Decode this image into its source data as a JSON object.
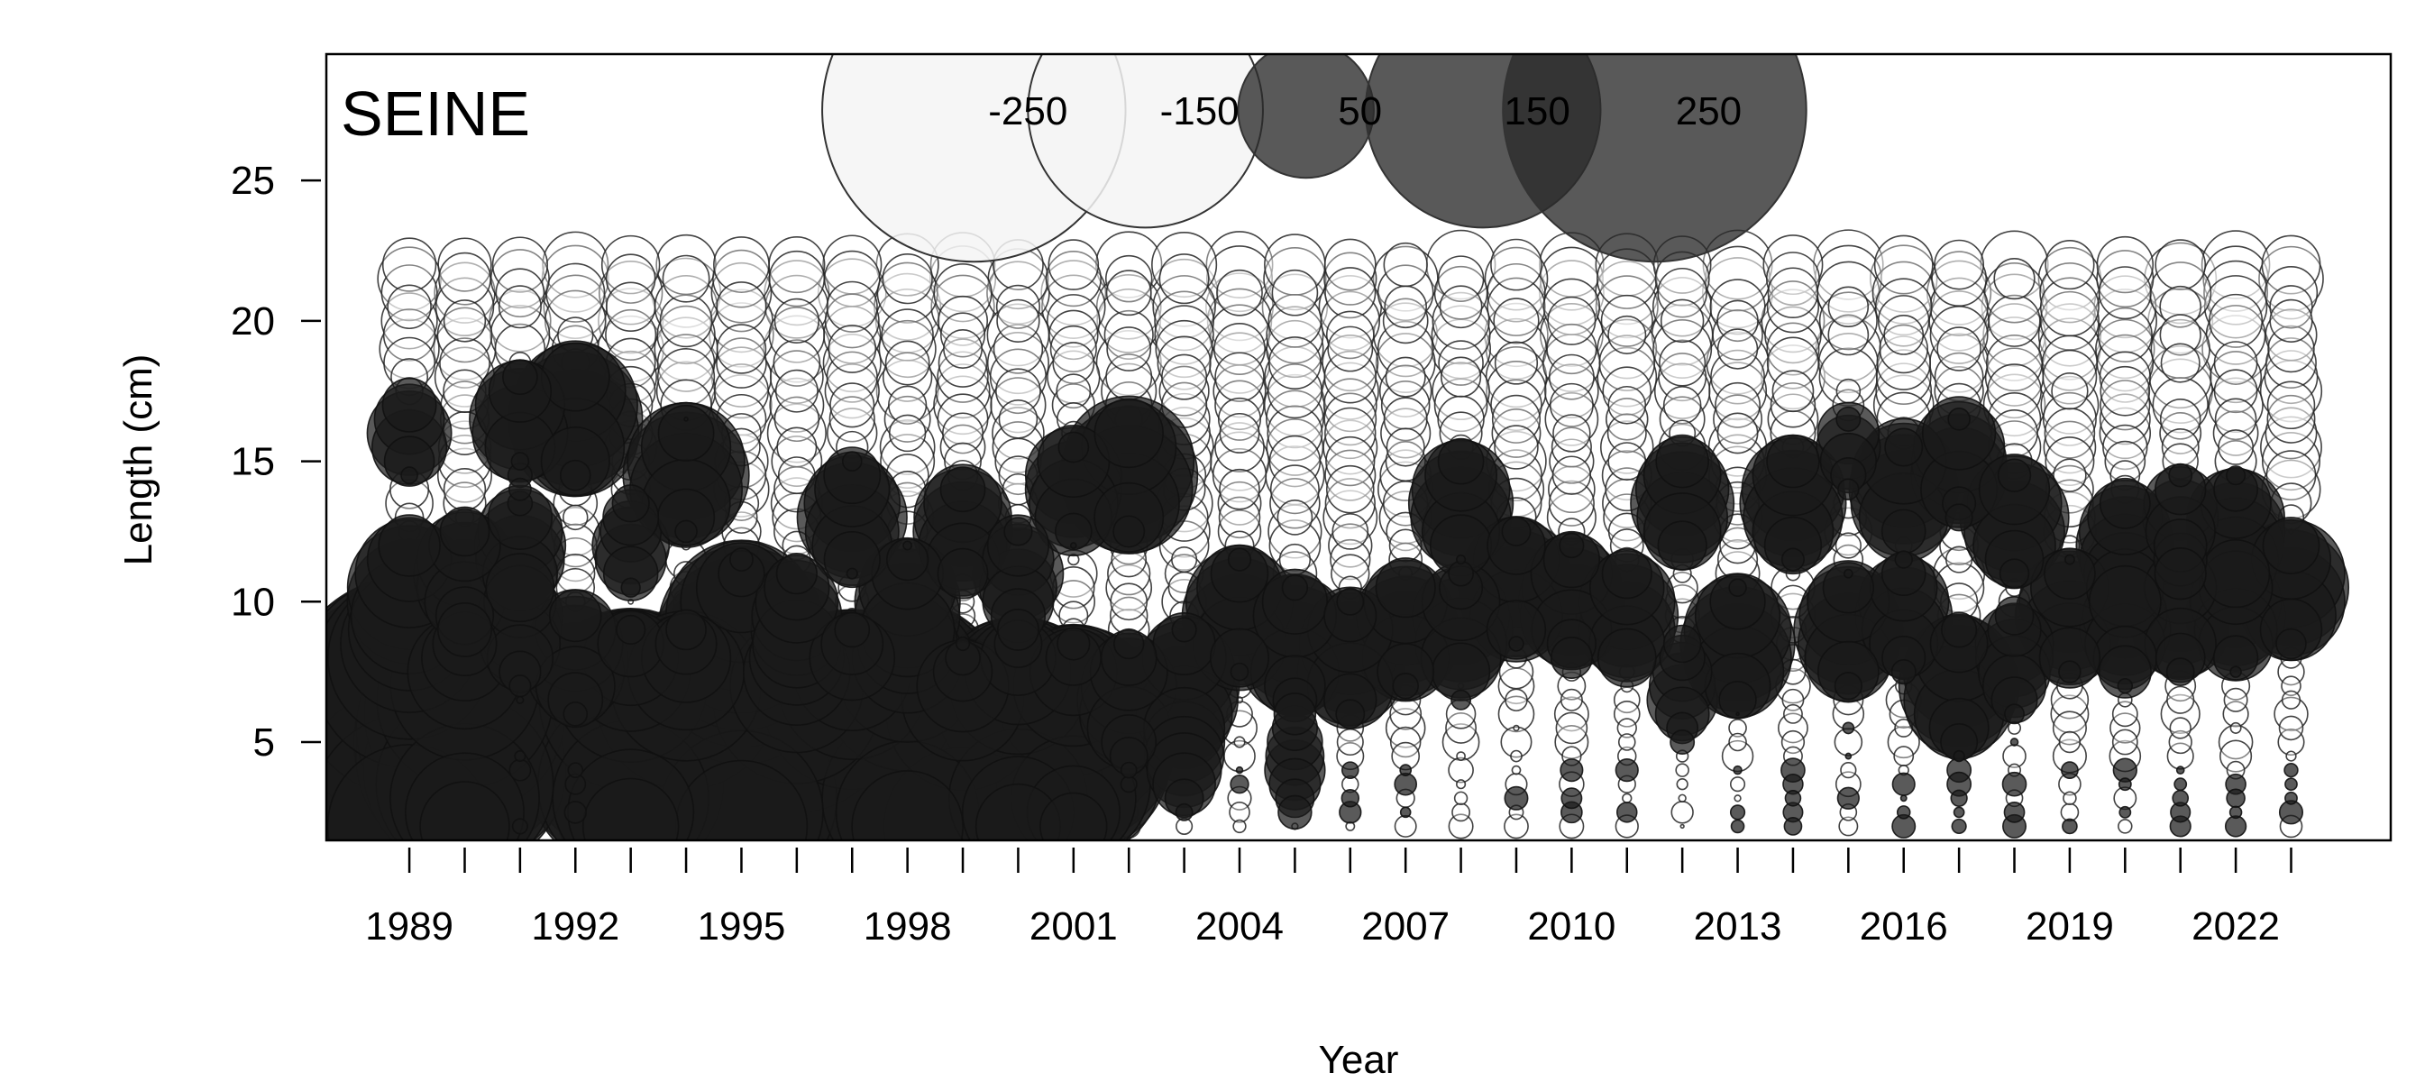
{
  "chart_data": {
    "type": "scatter",
    "subtype": "bubble",
    "title": "SEINE",
    "xlabel": "Year",
    "ylabel": "Length (cm)",
    "xlim": [
      1987.5,
      2024.8
    ],
    "ylim": [
      1.5,
      29.5
    ],
    "x_ticks": [
      1989,
      1990,
      1991,
      1992,
      1993,
      1994,
      1995,
      1996,
      1997,
      1998,
      1999,
      2000,
      2001,
      2002,
      2003,
      2004,
      2005,
      2006,
      2007,
      2008,
      2009,
      2010,
      2011,
      2012,
      2013,
      2014,
      2015,
      2016,
      2017,
      2018,
      2019,
      2020,
      2021,
      2022,
      2023
    ],
    "x_tick_labels": [
      {
        "value": 1989,
        "label": "1989"
      },
      {
        "value": 1992,
        "label": "1992"
      },
      {
        "value": 1995,
        "label": "1995"
      },
      {
        "value": 1998,
        "label": "1998"
      },
      {
        "value": 2001,
        "label": "2001"
      },
      {
        "value": 2004,
        "label": "2004"
      },
      {
        "value": 2007,
        "label": "2007"
      },
      {
        "value": 2010,
        "label": "2010"
      },
      {
        "value": 2013,
        "label": "2013"
      },
      {
        "value": 2016,
        "label": "2016"
      },
      {
        "value": 2019,
        "label": "2019"
      },
      {
        "value": 2022,
        "label": "2022"
      }
    ],
    "y_ticks": [
      {
        "value": 5,
        "label": "5"
      },
      {
        "value": 10,
        "label": "10"
      },
      {
        "value": 15,
        "label": "15"
      },
      {
        "value": 20,
        "label": "20"
      },
      {
        "value": 25,
        "label": "25"
      }
    ],
    "length_bins": {
      "min": 2,
      "max": 22,
      "step": 0.5
    },
    "legend": {
      "placement": "top-center",
      "entries": [
        {
          "value": -250,
          "label": "-250",
          "x": 1999.2
        },
        {
          "value": -150,
          "label": "-150",
          "x": 2002.3
        },
        {
          "value": 50,
          "label": "50",
          "x": 2005.2
        },
        {
          "value": 150,
          "label": "150",
          "x": 2008.4
        },
        {
          "value": 250,
          "label": "250",
          "x": 2011.5
        }
      ]
    },
    "positive_color": "#1a1a1a",
    "negative_color": "#ffffff",
    "grid": false,
    "series": [
      {
        "year": 1989,
        "peaks": [
          {
            "len": 10.5,
            "v": 50
          },
          {
            "len": 16,
            "v": 30
          },
          {
            "len": 5,
            "v": 280
          }
        ]
      },
      {
        "year": 1990,
        "peaks": [
          {
            "len": 5,
            "v": 170
          },
          {
            "len": 11,
            "v": 40
          }
        ]
      },
      {
        "year": 1991,
        "peaks": [
          {
            "len": 16.5,
            "v": 40
          },
          {
            "len": 12,
            "v": 35
          },
          {
            "len": 9,
            "v": 30
          }
        ]
      },
      {
        "year": 1992,
        "peaks": [
          {
            "len": 16.5,
            "v": 70
          },
          {
            "len": 8,
            "v": 40
          }
        ]
      },
      {
        "year": 1993,
        "peaks": [
          {
            "len": 5,
            "v": 180
          },
          {
            "len": 12,
            "v": 25
          }
        ]
      },
      {
        "year": 1994,
        "peaks": [
          {
            "len": 14.5,
            "v": 60
          },
          {
            "len": 4,
            "v": 260
          }
        ]
      },
      {
        "year": 1995,
        "peaks": [
          {
            "len": 5,
            "v": 230
          },
          {
            "len": 9,
            "v": 80
          }
        ]
      },
      {
        "year": 1996,
        "peaks": [
          {
            "len": 4,
            "v": 240
          },
          {
            "len": 9.5,
            "v": 30
          }
        ]
      },
      {
        "year": 1997,
        "peaks": [
          {
            "len": 13,
            "v": 45
          },
          {
            "len": 4,
            "v": 260
          }
        ]
      },
      {
        "year": 1998,
        "peaks": [
          {
            "len": 5,
            "v": 200
          },
          {
            "len": 10,
            "v": 40
          }
        ]
      },
      {
        "year": 1999,
        "peaks": [
          {
            "len": 12.5,
            "v": 40
          },
          {
            "len": 4,
            "v": 180
          }
        ]
      },
      {
        "year": 2000,
        "peaks": [
          {
            "len": 5,
            "v": 160
          },
          {
            "len": 11,
            "v": 30
          }
        ]
      },
      {
        "year": 2001,
        "peaks": [
          {
            "len": 14,
            "v": 40
          },
          {
            "len": 5,
            "v": 140
          }
        ]
      },
      {
        "year": 2002,
        "peaks": [
          {
            "len": 14.5,
            "v": 70
          },
          {
            "len": 6.5,
            "v": 40
          }
        ]
      },
      {
        "year": 2003,
        "peaks": [
          {
            "len": 7,
            "v": 45
          },
          {
            "len": 4.5,
            "v": 20
          }
        ]
      },
      {
        "year": 2004,
        "peaks": [
          {
            "len": 9.5,
            "v": 50
          }
        ]
      },
      {
        "year": 2005,
        "peaks": [
          {
            "len": 8.5,
            "v": 50
          },
          {
            "len": 4.5,
            "v": 15
          }
        ]
      },
      {
        "year": 2006,
        "peaks": [
          {
            "len": 8,
            "v": 45
          }
        ]
      },
      {
        "year": 2007,
        "peaks": [
          {
            "len": 9,
            "v": 45
          }
        ]
      },
      {
        "year": 2008,
        "peaks": [
          {
            "len": 13.5,
            "v": 45
          },
          {
            "len": 9,
            "v": 40
          }
        ]
      },
      {
        "year": 2009,
        "peaks": [
          {
            "len": 10.5,
            "v": 50
          }
        ]
      },
      {
        "year": 2010,
        "peaks": [
          {
            "len": 10,
            "v": 45
          }
        ]
      },
      {
        "year": 2011,
        "peaks": [
          {
            "len": 9.5,
            "v": 40
          }
        ]
      },
      {
        "year": 2012,
        "peaks": [
          {
            "len": 13.5,
            "v": 40
          },
          {
            "len": 7,
            "v": 20
          }
        ]
      },
      {
        "year": 2013,
        "peaks": [
          {
            "len": 8.5,
            "v": 50
          }
        ]
      },
      {
        "year": 2014,
        "peaks": [
          {
            "len": 13.5,
            "v": 45
          }
        ]
      },
      {
        "year": 2015,
        "peaks": [
          {
            "len": 9,
            "v": 45
          },
          {
            "len": 15.5,
            "v": 20
          }
        ]
      },
      {
        "year": 2016,
        "peaks": [
          {
            "len": 14,
            "v": 50
          },
          {
            "len": 9.5,
            "v": 35
          }
        ]
      },
      {
        "year": 2017,
        "peaks": [
          {
            "len": 15,
            "v": 40
          },
          {
            "len": 7,
            "v": 50
          }
        ]
      },
      {
        "year": 2018,
        "peaks": [
          {
            "len": 13,
            "v": 45
          },
          {
            "len": 8,
            "v": 25
          }
        ]
      },
      {
        "year": 2019,
        "peaks": [
          {
            "len": 9.5,
            "v": 45
          }
        ]
      },
      {
        "year": 2020,
        "peaks": [
          {
            "len": 12,
            "v": 40
          },
          {
            "len": 9,
            "v": 30
          }
        ]
      },
      {
        "year": 2021,
        "peaks": [
          {
            "len": 9.5,
            "v": 40
          },
          {
            "len": 13,
            "v": 25
          }
        ]
      },
      {
        "year": 2022,
        "peaks": [
          {
            "len": 12.5,
            "v": 40
          },
          {
            "len": 9.5,
            "v": 35
          }
        ]
      },
      {
        "year": 2023,
        "peaks": [
          {
            "len": 10.5,
            "v": 50
          }
        ]
      }
    ]
  }
}
